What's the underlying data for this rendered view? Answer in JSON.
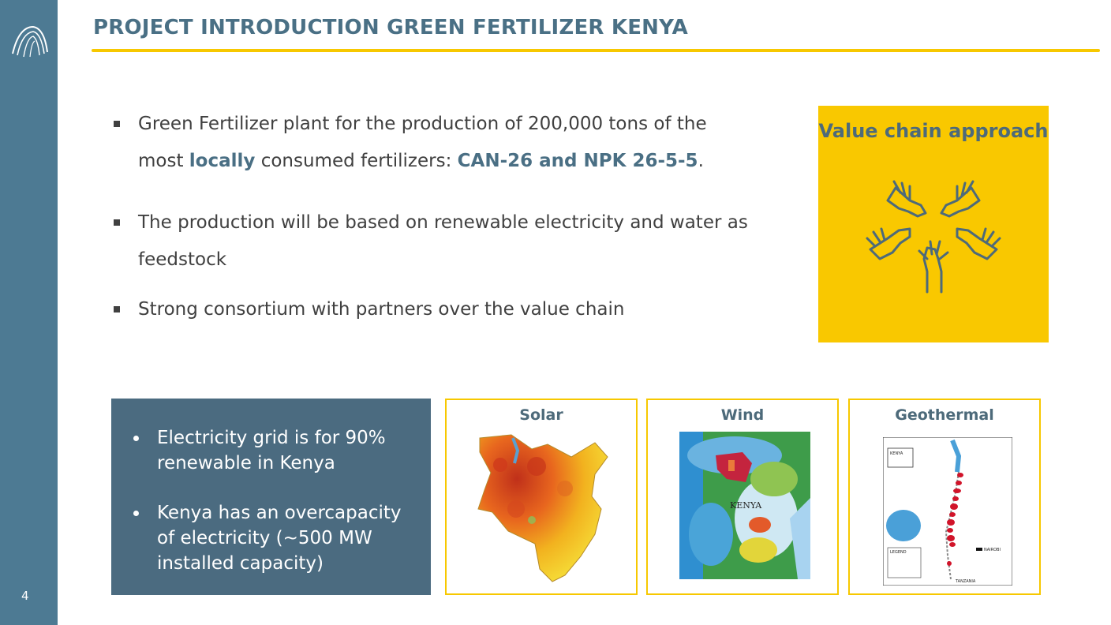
{
  "slide": {
    "title": "PROJECT INTRODUCTION GREEN FERTILIZER KENYA",
    "page_number": "4"
  },
  "bullets": {
    "b1_text1": "Green Fertilizer plant for the production of 200,000 tons of the most ",
    "b1_hl1": "locally",
    "b1_text2": " consumed fertilizers: ",
    "b1_hl2": "CAN-26 and NPK 26-5-5",
    "b1_text3": ".",
    "b2": "The production will be based on renewable electricity and water as feedstock",
    "b3": "Strong consortium with partners over the value chain"
  },
  "value_chain": {
    "title": "Value chain approach",
    "icon": "hands-circle-icon"
  },
  "grid_box": {
    "items": [
      "Electricity grid is for 90% renewable in Kenya",
      "Kenya has an overcapacity of electricity (~500 MW installed capacity)"
    ]
  },
  "maps": {
    "solar": {
      "label": "Solar"
    },
    "wind": {
      "label": "Wind",
      "country_label": "KENYA"
    },
    "geothermal": {
      "label": "Geothermal",
      "country_label": "KENYA",
      "legend_label": "LEGEND",
      "capital_label": "NAIROBI",
      "south_label": "TANZANIA"
    }
  },
  "colors": {
    "sidebar": "#4d7a93",
    "accent_yellow": "#f7c800",
    "title_blue": "#4a7085",
    "box_blue": "#4b6b80"
  }
}
